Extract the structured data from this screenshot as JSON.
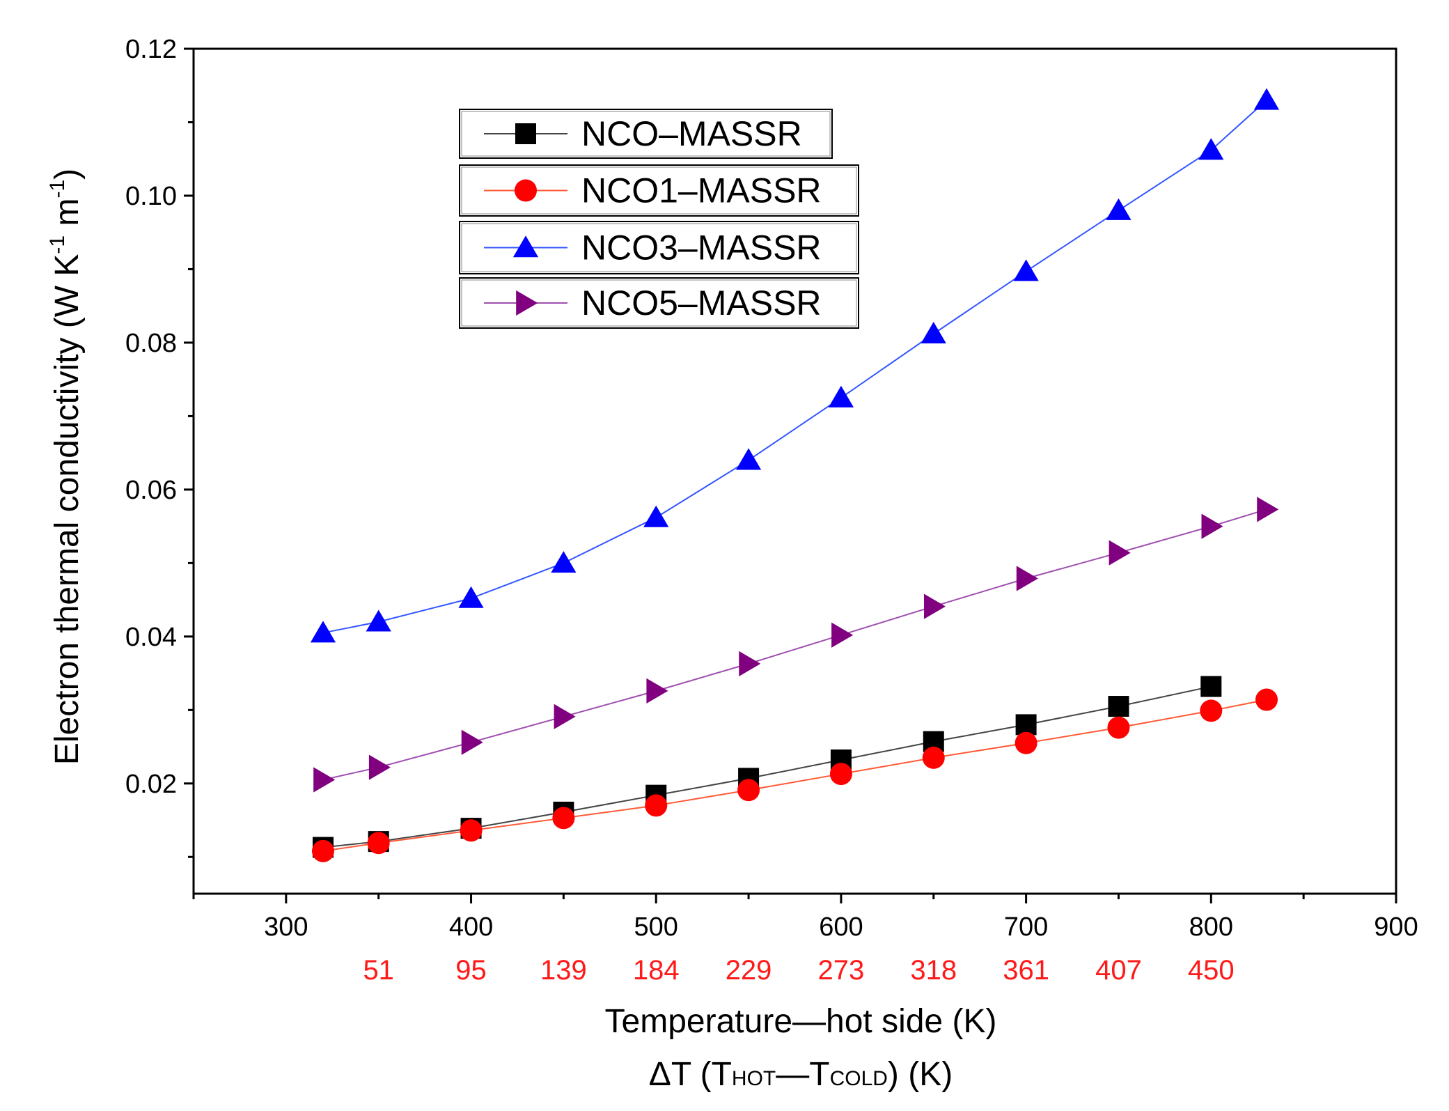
{
  "chart_data": {
    "type": "line",
    "xlabel": "Temperature—hot side (K)",
    "xlabel2": {
      "delta": "ΔT (T",
      "hot": "HOT",
      "dash": "—T",
      "cold": "COLD",
      "tail": ") (K)"
    },
    "ylabel": {
      "main": "Electron thermal conductivity (W K",
      "sup1": "-1",
      "mid": " m",
      "sup2": "-1",
      "tail": ")"
    },
    "xlim": [
      250,
      900
    ],
    "ylim": [
      0.005,
      0.12
    ],
    "xticks": [
      300,
      400,
      500,
      600,
      700,
      800,
      900
    ],
    "xtick_labels": [
      "300",
      "400",
      "500",
      "600",
      "700",
      "800",
      "900"
    ],
    "yticks": [
      0.02,
      0.04,
      0.06,
      0.08,
      0.1,
      0.12
    ],
    "ytick_labels": [
      "0.02",
      "0.04",
      "0.06",
      "0.08",
      "0.10",
      "0.12"
    ],
    "delta_t": {
      "x": [
        350,
        400,
        450,
        500,
        550,
        600,
        650,
        700,
        750,
        800
      ],
      "labels": [
        "51",
        "95",
        "139",
        "184",
        "229",
        "273",
        "318",
        "361",
        "407",
        "450"
      ],
      "color": "#ff1a1a"
    },
    "series": [
      {
        "name": "NCO–MASSR",
        "marker": "square",
        "color": "#000000",
        "line_color": "#444444",
        "x": [
          320,
          350,
          400,
          450,
          500,
          550,
          600,
          650,
          700,
          750,
          800
        ],
        "y": [
          0.0113,
          0.0121,
          0.0139,
          0.0161,
          0.0184,
          0.0207,
          0.0232,
          0.0257,
          0.028,
          0.0305,
          0.0332
        ]
      },
      {
        "name": "NCO1–MASSR",
        "marker": "circle",
        "color": "#ff0000",
        "line_color": "#ff5a36",
        "x": [
          320,
          350,
          400,
          450,
          500,
          550,
          600,
          650,
          700,
          750,
          800,
          830
        ],
        "y": [
          0.0108,
          0.0119,
          0.0136,
          0.0153,
          0.017,
          0.0191,
          0.0213,
          0.0235,
          0.0255,
          0.0276,
          0.0299,
          0.0314
        ]
      },
      {
        "name": "NCO3–MASSR",
        "marker": "triangle-up",
        "color": "#0000ff",
        "line_color": "#3355ff",
        "x": [
          320,
          350,
          400,
          450,
          500,
          550,
          600,
          650,
          700,
          750,
          800,
          830
        ],
        "y": [
          0.0405,
          0.042,
          0.0452,
          0.05,
          0.0562,
          0.064,
          0.0725,
          0.0812,
          0.0897,
          0.098,
          0.1062,
          0.113
        ]
      },
      {
        "name": "NCO5–MASSR",
        "marker": "triangle-right",
        "color": "#800080",
        "line_color": "#a050b0",
        "x": [
          320,
          350,
          400,
          450,
          500,
          550,
          600,
          650,
          700,
          750,
          800,
          830
        ],
        "y": [
          0.0205,
          0.0222,
          0.0256,
          0.0291,
          0.0326,
          0.0363,
          0.0402,
          0.0441,
          0.0479,
          0.0514,
          0.055,
          0.0573
        ]
      }
    ]
  }
}
